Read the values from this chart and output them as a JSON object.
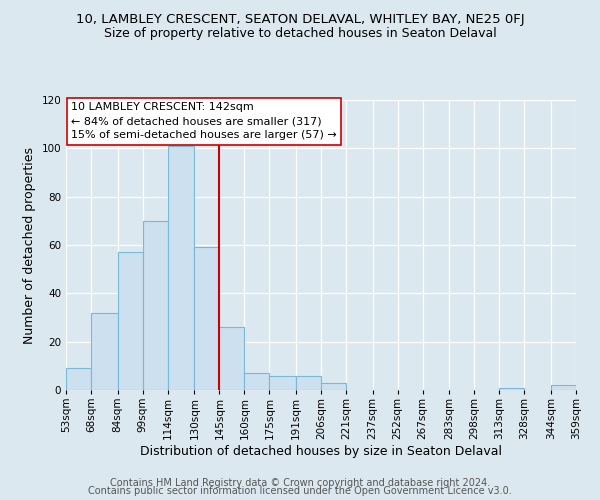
{
  "title": "10, LAMBLEY CRESCENT, SEATON DELAVAL, WHITLEY BAY, NE25 0FJ",
  "subtitle": "Size of property relative to detached houses in Seaton Delaval",
  "xlabel": "Distribution of detached houses by size in Seaton Delaval",
  "ylabel": "Number of detached properties",
  "bin_edges": [
    53,
    68,
    84,
    99,
    114,
    130,
    145,
    160,
    175,
    191,
    206,
    221,
    237,
    252,
    267,
    283,
    298,
    313,
    328,
    344,
    359
  ],
  "bar_heights": [
    9,
    32,
    57,
    70,
    101,
    59,
    26,
    7,
    6,
    6,
    3,
    0,
    0,
    0,
    0,
    0,
    0,
    1,
    0,
    2
  ],
  "bar_color": "#cce0f0",
  "bar_edge_color": "#7ab8d8",
  "vline_x": 145,
  "vline_color": "#cc0000",
  "annotation_title": "10 LAMBLEY CRESCENT: 142sqm",
  "annotation_line1": "← 84% of detached houses are smaller (317)",
  "annotation_line2": "15% of semi-detached houses are larger (57) →",
  "annotation_box_edge": "#cc0000",
  "annotation_box_face": "#ffffff",
  "ylim": [
    0,
    120
  ],
  "yticks": [
    0,
    20,
    40,
    60,
    80,
    100,
    120
  ],
  "tick_labels": [
    "53sqm",
    "68sqm",
    "84sqm",
    "99sqm",
    "114sqm",
    "130sqm",
    "145sqm",
    "160sqm",
    "175sqm",
    "191sqm",
    "206sqm",
    "221sqm",
    "237sqm",
    "252sqm",
    "267sqm",
    "283sqm",
    "298sqm",
    "313sqm",
    "328sqm",
    "344sqm",
    "359sqm"
  ],
  "footer1": "Contains HM Land Registry data © Crown copyright and database right 2024.",
  "footer2": "Contains public sector information licensed under the Open Government Licence v3.0.",
  "background_color": "#dce8f0",
  "title_fontsize": 9.5,
  "subtitle_fontsize": 9,
  "axis_label_fontsize": 9,
  "tick_fontsize": 7.5,
  "footer_fontsize": 7
}
